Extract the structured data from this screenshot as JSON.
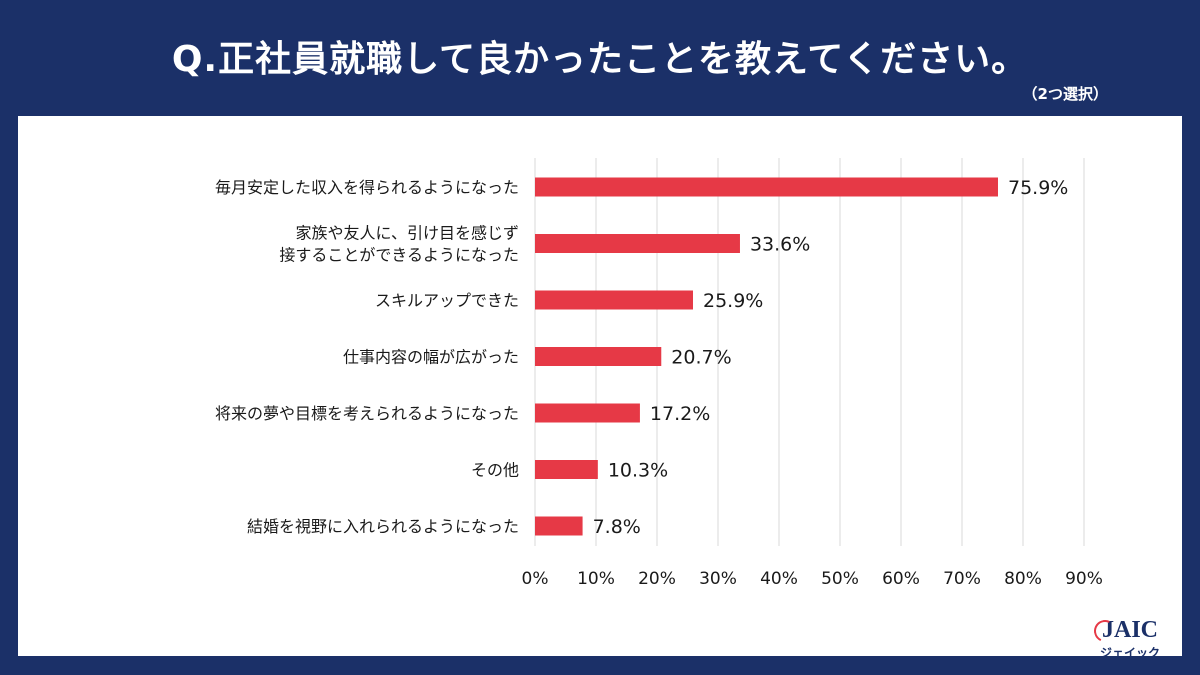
{
  "header": {
    "title": "Q.正社員就職して良かったことを教えてください。",
    "subtitle": "（2つ選択）"
  },
  "logo": {
    "main": "JAIC",
    "sub": "ジェイック"
  },
  "colors": {
    "background": "#1b3068",
    "bar": "#e63946",
    "grid": "#d9d9d9",
    "text": "#1a1a1a"
  },
  "chart_data": {
    "type": "bar",
    "orientation": "horizontal",
    "title": "Q.正社員就職して良かったことを教えてください。",
    "categories": [
      [
        "毎月安定した収入を得られるようになった"
      ],
      [
        "家族や友人に、引け目を感じず",
        "接することができるようになった"
      ],
      [
        "スキルアップできた"
      ],
      [
        "仕事内容の幅が広がった"
      ],
      [
        "将来の夢や目標を考えられるようになった"
      ],
      [
        "その他"
      ],
      [
        "結婚を視野に入れられるようになった"
      ]
    ],
    "values": [
      75.9,
      33.6,
      25.9,
      20.7,
      17.2,
      10.3,
      7.8
    ],
    "value_labels": [
      "75.9%",
      "33.6%",
      "25.9%",
      "20.7%",
      "17.2%",
      "10.3%",
      "7.8%"
    ],
    "xlim": [
      0,
      90
    ],
    "xticks": [
      "0%",
      "10%",
      "20%",
      "30%",
      "40%",
      "50%",
      "60%",
      "70%",
      "80%",
      "90%"
    ],
    "grid": true
  }
}
